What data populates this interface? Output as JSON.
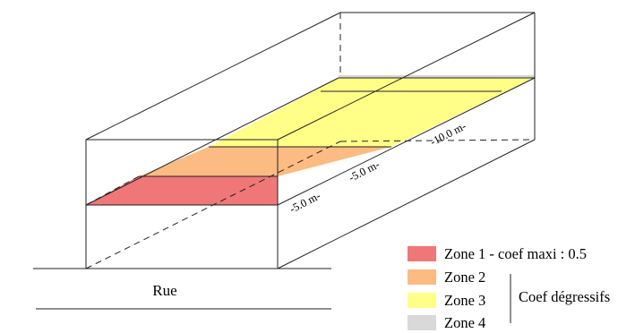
{
  "street": {
    "label": "Rue"
  },
  "dimensions": {
    "zone1_depth": "-5.0 m-",
    "zone2_depth": "-5.0 m-",
    "zone3_depth": "-10.0 m-"
  },
  "legend": {
    "items": [
      {
        "label": "Zone 1 - coef maxi : 0.5",
        "color": "#f07777"
      },
      {
        "label": "Zone 2",
        "color": "#fbbb82"
      },
      {
        "label": "Zone 3",
        "color": "#ffff88"
      },
      {
        "label": "Zone 4",
        "color": "#d9d9d9"
      }
    ],
    "bracket_label": "Coef dégressifs"
  },
  "colors": {
    "line": "#222222"
  }
}
